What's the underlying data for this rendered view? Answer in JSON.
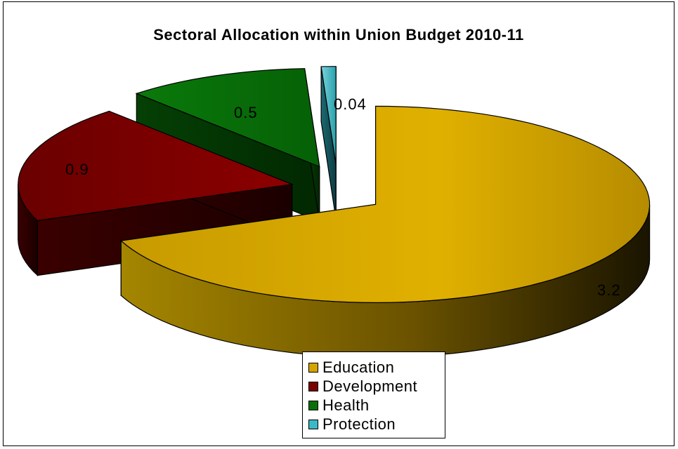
{
  "chart_data": {
    "type": "pie",
    "title": "Sectoral Allocation within Union Budget 2010-11",
    "categories": [
      "Education",
      "Development",
      "Health",
      "Protection"
    ],
    "values": [
      3.2,
      0.9,
      0.5,
      0.04
    ],
    "data_labels": [
      "3.2",
      "0.9",
      "0.5",
      "0.04"
    ],
    "colors": [
      "#d4a400",
      "#7a0000",
      "#0a6e0a",
      "#3ab8c4"
    ],
    "exploded": true,
    "three_d": true,
    "legend_position": "bottom"
  }
}
